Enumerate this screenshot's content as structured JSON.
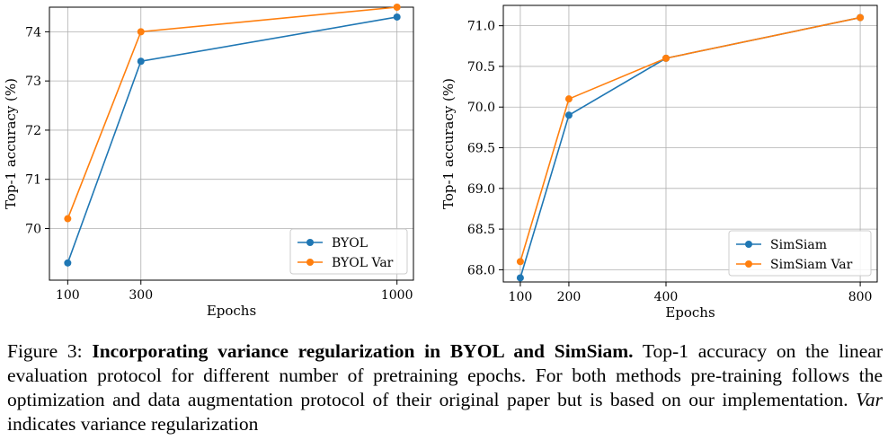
{
  "caption": {
    "label": "Figure 3:",
    "title": "Incorporating variance regularization in BYOL and SimSiam.",
    "text": "Top-1 accuracy on the linear evaluation protocol for different number of pretraining epochs. For both methods pre-training follows the optimization and data augmentation protocol of their original paper but is based on our implementation.",
    "var_word": "Var",
    "var_text": "indicates variance regularization"
  },
  "colors": {
    "blue": "#1f77b4",
    "orange": "#ff7f0e",
    "grid": "#b0b0b0"
  },
  "chart_data": [
    {
      "type": "line",
      "xlabel": "Epochs",
      "ylabel": "Top-1 accuracy (%)",
      "x": [
        100,
        300,
        1000
      ],
      "xticks": [
        "100",
        "300",
        "1000"
      ],
      "yticks": [
        "70",
        "71",
        "72",
        "73",
        "74"
      ],
      "xlim": [
        50,
        1045
      ],
      "ylim": [
        68.95,
        74.5
      ],
      "grid": true,
      "legend_position": "lower-right",
      "series": [
        {
          "name": "BYOL",
          "color": "#1f77b4",
          "values": [
            69.3,
            73.4,
            74.3
          ]
        },
        {
          "name": "BYOL Var",
          "color": "#ff7f0e",
          "values": [
            70.2,
            74.0,
            74.5
          ]
        }
      ]
    },
    {
      "type": "line",
      "xlabel": "Epochs",
      "ylabel": "Top-1 accuracy (%)",
      "x": [
        100,
        200,
        400,
        800
      ],
      "xticks": [
        "100",
        "200",
        "400",
        "800"
      ],
      "yticks": [
        "68.0",
        "68.5",
        "69.0",
        "69.5",
        "70.0",
        "70.5",
        "71.0"
      ],
      "xlim": [
        65,
        835
      ],
      "ylim": [
        67.85,
        71.25
      ],
      "grid": true,
      "legend_position": "lower-right",
      "series": [
        {
          "name": "SimSiam",
          "color": "#1f77b4",
          "values": [
            67.9,
            69.9,
            70.6,
            71.1
          ]
        },
        {
          "name": "SimSiam Var",
          "color": "#ff7f0e",
          "values": [
            68.1,
            70.1,
            70.6,
            71.1
          ]
        }
      ]
    }
  ]
}
